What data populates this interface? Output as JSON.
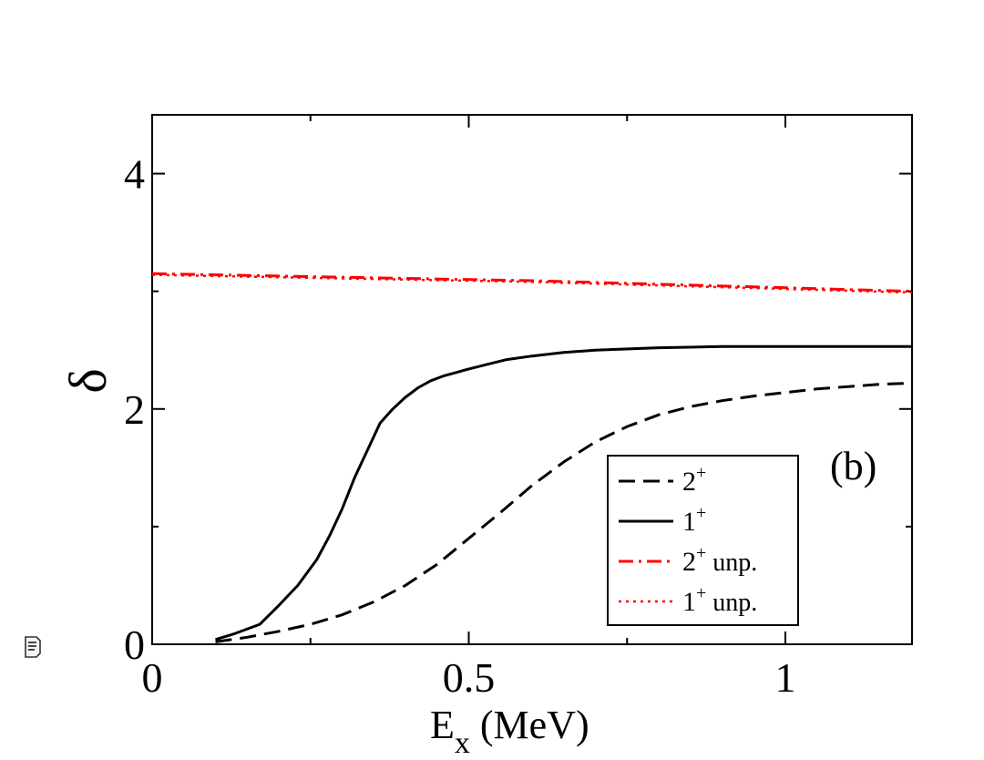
{
  "chart_data": {
    "type": "line",
    "title": "",
    "panel_label": "(b)",
    "xlabel_main": "E",
    "xlabel_sub": "x",
    "xlabel_unit": " (MeV)",
    "ylabel": "δ",
    "xlim": [
      0,
      1.2
    ],
    "ylim": [
      0,
      4.5
    ],
    "xticks": [
      {
        "value": 0,
        "label": "0"
      },
      {
        "value": 0.5,
        "label": "0.5"
      },
      {
        "value": 1,
        "label": "1"
      }
    ],
    "yticks": [
      {
        "value": 0,
        "label": "0"
      },
      {
        "value": 2,
        "label": "2"
      },
      {
        "value": 4,
        "label": "4"
      }
    ],
    "minor_yticks": [
      1,
      3
    ],
    "minor_xticks": [
      0.25,
      0.75
    ],
    "grid": false,
    "legend_position": "lower-right",
    "series": [
      {
        "name": "2+",
        "name_base": "2",
        "name_sup": "+",
        "name_suffix": "",
        "color": "#000000",
        "style": "dashed",
        "x": [
          0.1,
          0.15,
          0.2,
          0.25,
          0.3,
          0.35,
          0.4,
          0.45,
          0.5,
          0.55,
          0.6,
          0.65,
          0.7,
          0.75,
          0.8,
          0.85,
          0.9,
          0.95,
          1.0,
          1.05,
          1.1,
          1.15,
          1.2
        ],
        "y": [
          0.02,
          0.06,
          0.11,
          0.17,
          0.25,
          0.36,
          0.5,
          0.68,
          0.9,
          1.12,
          1.35,
          1.55,
          1.72,
          1.85,
          1.95,
          2.02,
          2.07,
          2.11,
          2.14,
          2.17,
          2.19,
          2.21,
          2.22
        ]
      },
      {
        "name": "1+",
        "name_base": "1",
        "name_sup": "+",
        "name_suffix": "",
        "color": "#000000",
        "style": "solid",
        "x": [
          0.1,
          0.13,
          0.17,
          0.2,
          0.23,
          0.26,
          0.28,
          0.3,
          0.32,
          0.34,
          0.36,
          0.38,
          0.4,
          0.42,
          0.44,
          0.46,
          0.48,
          0.5,
          0.53,
          0.56,
          0.6,
          0.65,
          0.7,
          0.8,
          0.9,
          1.0,
          1.1,
          1.2
        ],
        "y": [
          0.04,
          0.09,
          0.17,
          0.33,
          0.5,
          0.72,
          0.92,
          1.15,
          1.42,
          1.65,
          1.88,
          2.0,
          2.1,
          2.18,
          2.24,
          2.28,
          2.31,
          2.34,
          2.38,
          2.42,
          2.45,
          2.48,
          2.5,
          2.52,
          2.53,
          2.53,
          2.53,
          2.53
        ]
      },
      {
        "name": "2+ unp.",
        "name_base": "2",
        "name_sup": "+",
        "name_suffix": " unp.",
        "color": "#ff0000",
        "style": "dashdot",
        "x": [
          0.0,
          0.2,
          0.4,
          0.6,
          0.8,
          1.0,
          1.2
        ],
        "y": [
          3.15,
          3.13,
          3.11,
          3.09,
          3.06,
          3.03,
          3.0
        ]
      },
      {
        "name": "1+ unp.",
        "name_base": "1",
        "name_sup": "+",
        "name_suffix": " unp.",
        "color": "#ff0000",
        "style": "dotted",
        "x": [
          0.0,
          0.2,
          0.4,
          0.6,
          0.8,
          1.0,
          1.2
        ],
        "y": [
          3.14,
          3.12,
          3.1,
          3.08,
          3.05,
          3.02,
          2.99
        ]
      }
    ]
  },
  "side_icon": "note-icon"
}
